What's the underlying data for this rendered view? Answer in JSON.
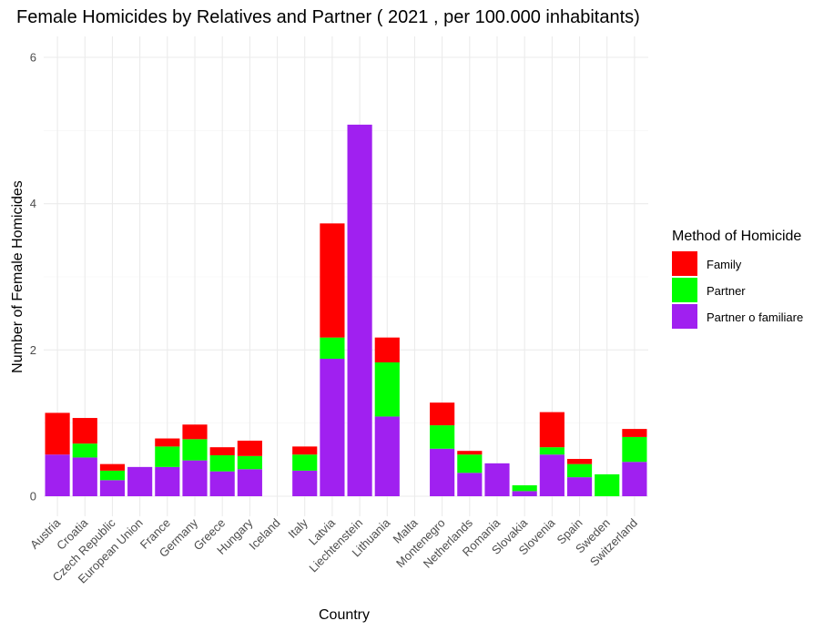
{
  "chart_data": {
    "type": "bar",
    "stacked": true,
    "title": "Female Homicides by Relatives and Partner ( 2021 , per 100.000 inhabitants)",
    "xlabel": "Country",
    "ylabel": "Number of Female Homicides",
    "ylim": [
      0,
      6.2
    ],
    "yticks": [
      0,
      2,
      4,
      6
    ],
    "grid": true,
    "legend": {
      "title": "Method of Homicide",
      "position": "right"
    },
    "categories": [
      "Austria",
      "Croatia",
      "Czech Republic",
      "European Union",
      "France",
      "Germany",
      "Greece",
      "Hungary",
      "Iceland",
      "Italy",
      "Latvia",
      "Liechtenstein",
      "Lithuania",
      "Malta",
      "Montenegro",
      "Netherlands",
      "Romania",
      "Slovakia",
      "Slovenia",
      "Spain",
      "Sweden",
      "Switzerland"
    ],
    "series": [
      {
        "name": "Partner o familiare",
        "color": "#a020f0",
        "values": [
          0.57,
          0.53,
          0.22,
          0.4,
          0.4,
          0.49,
          0.34,
          0.37,
          0,
          0.35,
          1.88,
          5.08,
          1.09,
          0,
          0.65,
          0.32,
          0.45,
          0.07,
          0.57,
          0.26,
          0,
          0.47
        ]
      },
      {
        "name": "Partner",
        "color": "#00ff00",
        "values": [
          0,
          0.19,
          0.13,
          0,
          0.28,
          0.29,
          0.22,
          0.18,
          0,
          0.22,
          0.29,
          0,
          0.74,
          0,
          0.32,
          0.25,
          0,
          0.08,
          0.1,
          0.18,
          0.3,
          0.34
        ]
      },
      {
        "name": "Family",
        "color": "#ff0000",
        "values": [
          0.57,
          0.35,
          0.09,
          0,
          0.11,
          0.2,
          0.11,
          0.21,
          0,
          0.11,
          1.56,
          0,
          0.34,
          0,
          0.31,
          0.05,
          0,
          0,
          0.48,
          0.07,
          0,
          0.11
        ]
      }
    ],
    "legend_order": [
      "Family",
      "Partner",
      "Partner o familiare"
    ]
  }
}
